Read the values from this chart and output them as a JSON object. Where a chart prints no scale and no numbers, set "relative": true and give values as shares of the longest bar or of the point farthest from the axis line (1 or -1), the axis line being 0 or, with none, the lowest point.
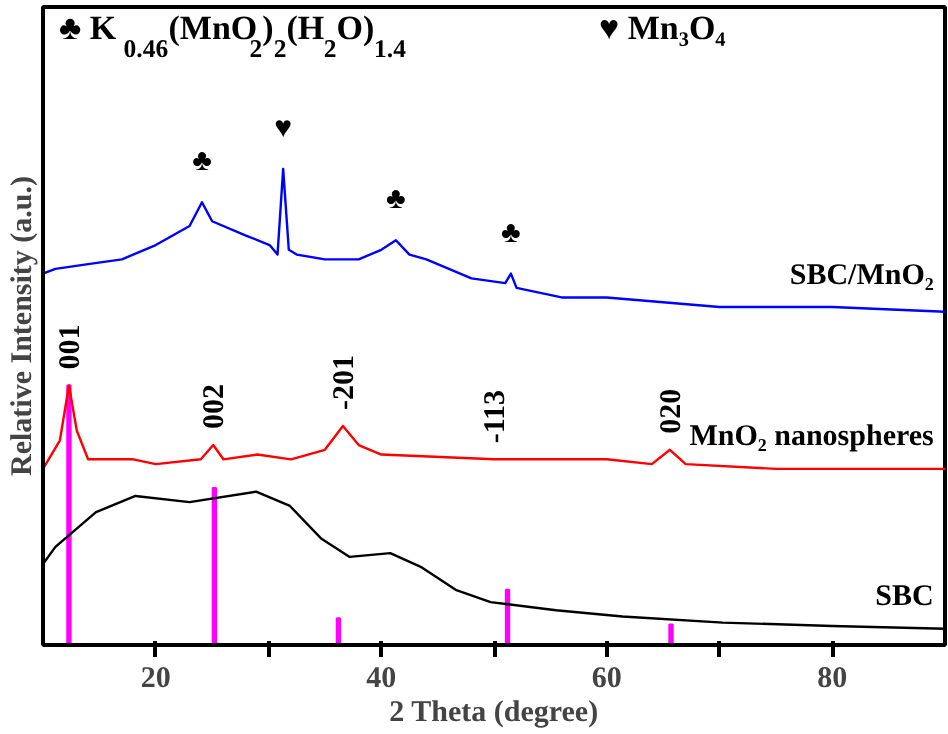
{
  "chart_data": {
    "type": "line",
    "relative": true,
    "xlabel": "2 Theta (degree)",
    "ylabel": "Relative Intensity (a.u.)",
    "xlim": [
      10,
      90
    ],
    "xticks": [
      20,
      {
        "value": 30,
        "label": null
      },
      40,
      {
        "value": 50,
        "label": null
      },
      60,
      {
        "value": 70,
        "label": null
      },
      80
    ],
    "grid": false,
    "series": [
      {
        "name": "SBC/MnO₂",
        "color": "#0000ff",
        "x": [
          10,
          11.1,
          14,
          17,
          20,
          23,
          24.1,
          25,
          28,
          30.1,
          30.8,
          31.3,
          31.8,
          32.5,
          35,
          38,
          40,
          41.3,
          42.5,
          44,
          48,
          51,
          51.5,
          52,
          56,
          60,
          70,
          80,
          90
        ],
        "values": [
          0.78,
          0.79,
          0.8,
          0.81,
          0.84,
          0.88,
          0.93,
          0.89,
          0.86,
          0.84,
          0.82,
          1.0,
          0.83,
          0.82,
          0.81,
          0.81,
          0.83,
          0.85,
          0.82,
          0.81,
          0.77,
          0.76,
          0.78,
          0.75,
          0.73,
          0.73,
          0.71,
          0.71,
          0.7
        ]
      },
      {
        "name": "MnO₂ nanospheres",
        "color": "#ff0000",
        "x": [
          10,
          11.5,
          12.3,
          13,
          14,
          18,
          20,
          24,
          25.1,
          26,
          29,
          32,
          35,
          36.6,
          38,
          40,
          50,
          60,
          64,
          65.6,
          67,
          75,
          90
        ],
        "values": [
          0.37,
          0.43,
          0.545,
          0.45,
          0.39,
          0.39,
          0.38,
          0.39,
          0.42,
          0.39,
          0.4,
          0.39,
          0.41,
          0.46,
          0.42,
          0.4,
          0.39,
          0.39,
          0.38,
          0.41,
          0.38,
          0.37,
          0.37
        ]
      },
      {
        "name": "SBC",
        "color": "#000000",
        "x": [
          10,
          11.1,
          14.7,
          18.2,
          23,
          28.9,
          31.9,
          34.7,
          37.2,
          40.8,
          43.6,
          46.6,
          49.7,
          55.5,
          61.4,
          70.3,
          80,
          90
        ],
        "values": [
          0.17,
          0.206,
          0.279,
          0.313,
          0.3,
          0.322,
          0.292,
          0.223,
          0.185,
          0.193,
          0.163,
          0.116,
          0.09,
          0.073,
          0.06,
          0.047,
          0.04,
          0.034
        ]
      },
      {
        "type": "bar",
        "color": "#ff00ff",
        "x": [
          12.3,
          25.2,
          36.2,
          51.2,
          65.7
        ],
        "values": [
          0.545,
          0.33,
          0.056,
          0.116,
          0.043
        ]
      }
    ],
    "annotations": [
      "♣ K$_{0.46}$(MnO$_{2}$)$_{2}$(H$_{2}$O)$_{1.4}$",
      "♥ Mn₃O₄",
      {
        "text": "♣",
        "x": 24.1,
        "y": 0.93
      },
      {
        "text": "♥",
        "x": 31.3,
        "y": 1.0
      },
      {
        "text": "♣",
        "x": 41.3,
        "y": 0.85
      },
      {
        "text": "♣",
        "x": 51.5,
        "y": 0.78
      },
      {
        "text": "001",
        "x": 12.3,
        "y": 0.545
      },
      {
        "text": "002",
        "x": 25.1,
        "y": 0.42
      },
      {
        "text": "-201",
        "x": 36.6,
        "y": 0.46
      },
      {
        "text": "-113",
        "x": 50,
        "y": 0.39
      },
      {
        "text": "020",
        "x": 65.6,
        "y": 0.41
      }
    ]
  }
}
